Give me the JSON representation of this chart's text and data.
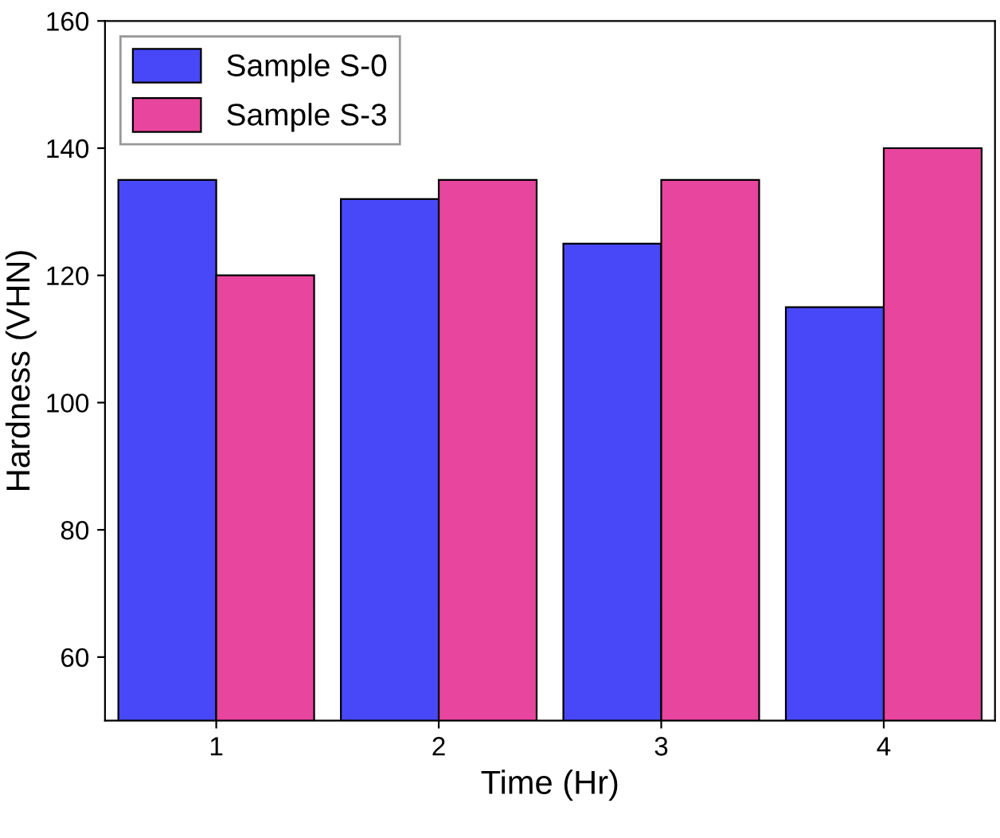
{
  "chart_data": {
    "type": "bar",
    "xlabel": "Time (Hr)",
    "ylabel": "Hardness (VHN)",
    "categories": [
      "1",
      "2",
      "3",
      "4"
    ],
    "series": [
      {
        "name": "Sample S-0",
        "color": "#4848f8",
        "values": [
          135,
          132,
          125,
          115
        ]
      },
      {
        "name": "Sample S-3",
        "color": "#e8459e",
        "values": [
          120,
          135,
          135,
          140
        ]
      }
    ],
    "ylim": [
      50,
      160
    ],
    "yticks": [
      60,
      80,
      100,
      120,
      140,
      160
    ],
    "grid": false,
    "legend": "top left"
  }
}
